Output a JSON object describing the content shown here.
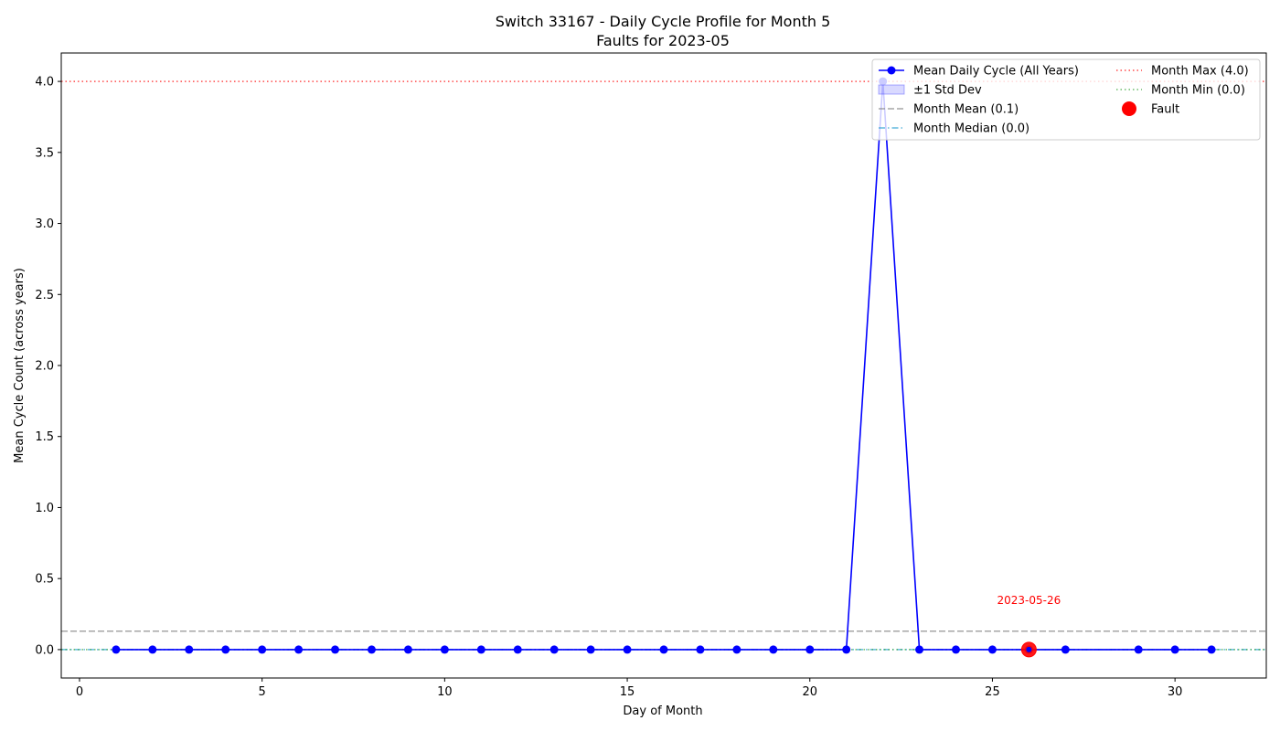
{
  "chart_data": {
    "type": "line",
    "title": "Switch 33167 - Daily Cycle Profile for Month 5",
    "subtitle": "Faults for 2023-05",
    "xlabel": "Day of Month",
    "ylabel": "Mean Cycle Count (across years)",
    "xlim": [
      -0.5,
      32.5
    ],
    "ylim": [
      -0.2,
      4.2
    ],
    "xticks": [
      0,
      5,
      10,
      15,
      20,
      25,
      30
    ],
    "yticks": [
      0.0,
      0.5,
      1.0,
      1.5,
      2.0,
      2.5,
      3.0,
      3.5,
      4.0
    ],
    "grid": false,
    "legend_position": "top-right",
    "series": [
      {
        "name": "Mean Daily Cycle (All Years)",
        "color": "#0000ff",
        "x": [
          1,
          2,
          3,
          4,
          5,
          6,
          7,
          8,
          9,
          10,
          11,
          12,
          13,
          14,
          15,
          16,
          17,
          18,
          19,
          20,
          21,
          22,
          23,
          24,
          25,
          26,
          27,
          29,
          30,
          31
        ],
        "y": [
          0,
          0,
          0,
          0,
          0,
          0,
          0,
          0,
          0,
          0,
          0,
          0,
          0,
          0,
          0,
          0,
          0,
          0,
          0,
          0,
          0,
          4.0,
          0,
          0,
          0,
          0,
          0,
          0,
          0,
          0
        ]
      }
    ],
    "std_band": {
      "name": "±1 Std Dev",
      "color": "#0000ff"
    },
    "reference_lines": [
      {
        "name": "Month Mean (0.1)",
        "value": 0.13,
        "color": "#808080",
        "style": "dashed"
      },
      {
        "name": "Month Median (0.0)",
        "value": 0.0,
        "color": "#1f9bcf",
        "style": "dashdot"
      },
      {
        "name": "Month Max (4.0)",
        "value": 4.0,
        "color": "#ff0000",
        "style": "dotted"
      },
      {
        "name": "Month Min (0.0)",
        "value": 0.0,
        "color": "#2ca02c",
        "style": "dotted"
      }
    ],
    "faults": [
      {
        "name": "Fault",
        "x": 26,
        "y": 0.0,
        "label": "2023-05-26",
        "color": "#ff0000"
      }
    ]
  }
}
